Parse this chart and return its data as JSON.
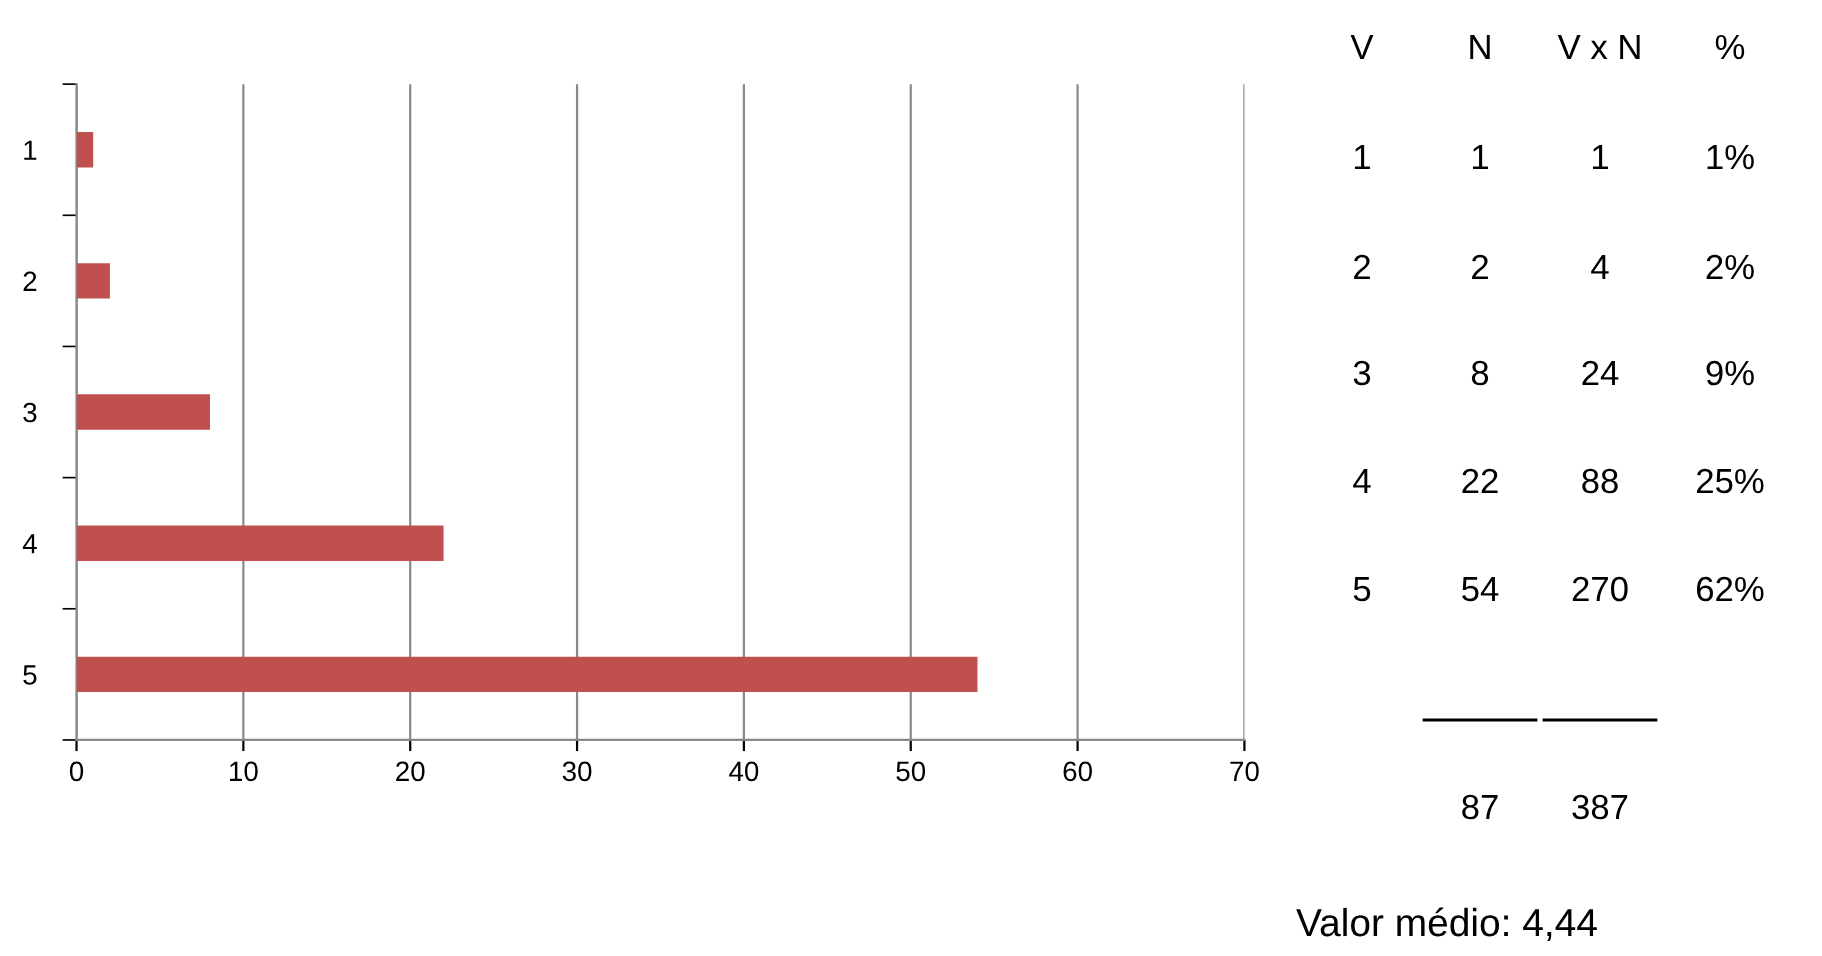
{
  "chart_data": {
    "type": "bar",
    "orientation": "horizontal",
    "categories": [
      "1",
      "2",
      "3",
      "4",
      "5"
    ],
    "values": [
      1,
      2,
      8,
      22,
      54
    ],
    "color": "#c0504d",
    "xlim": [
      0,
      70
    ],
    "xticks": [
      0,
      10,
      20,
      30,
      40,
      50,
      60,
      70
    ],
    "grid": "x",
    "data_labels": true,
    "annotations": [
      "V",
      "N",
      "V x N",
      "%",
      "1",
      "1%",
      "4",
      "2%",
      "24",
      "9%",
      "88",
      "25%",
      "270",
      "62%",
      "87",
      "387",
      "Valor médio: 4,44"
    ]
  }
}
